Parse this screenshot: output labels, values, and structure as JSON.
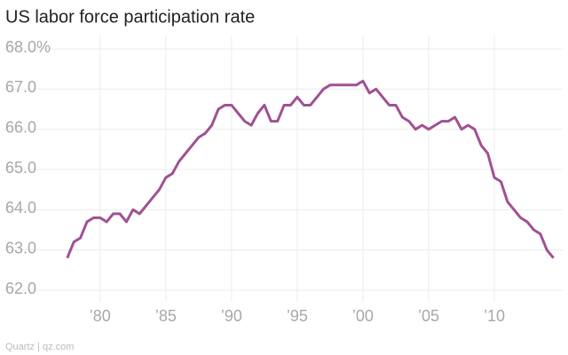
{
  "chart_data": {
    "type": "line",
    "title": "US labor force participation rate",
    "source": "Quartz | qz.com",
    "x": [
      1977.5,
      1978,
      1978.5,
      1979,
      1979.5,
      1980,
      1980.5,
      1981,
      1981.5,
      1982,
      1982.5,
      1983,
      1983.5,
      1984,
      1984.5,
      1985,
      1985.5,
      1986,
      1986.5,
      1987,
      1987.5,
      1988,
      1988.5,
      1989,
      1989.5,
      1990,
      1990.5,
      1991,
      1991.5,
      1992,
      1992.5,
      1993,
      1993.5,
      1994,
      1994.5,
      1995,
      1995.5,
      1996,
      1996.5,
      1997,
      1997.5,
      1998,
      1998.5,
      1999,
      1999.5,
      2000,
      2000.5,
      2001,
      2001.5,
      2002,
      2002.5,
      2003,
      2003.5,
      2004,
      2004.5,
      2005,
      2005.5,
      2006,
      2006.5,
      2007,
      2007.5,
      2008,
      2008.5,
      2009,
      2009.5,
      2010,
      2010.5,
      2011,
      2011.5,
      2012,
      2012.5,
      2013,
      2013.5,
      2014,
      2014.5
    ],
    "series": [
      {
        "name": "Participation rate",
        "color": "#a05192",
        "values": [
          62.8,
          63.2,
          63.3,
          63.7,
          63.8,
          63.8,
          63.7,
          63.9,
          63.9,
          63.7,
          64.0,
          63.9,
          64.1,
          64.3,
          64.5,
          64.8,
          64.9,
          65.2,
          65.4,
          65.6,
          65.8,
          65.9,
          66.1,
          66.5,
          66.6,
          66.6,
          66.4,
          66.2,
          66.1,
          66.4,
          66.6,
          66.2,
          66.2,
          66.6,
          66.6,
          66.8,
          66.6,
          66.6,
          66.8,
          67.0,
          67.1,
          67.1,
          67.1,
          67.1,
          67.1,
          67.2,
          66.9,
          67.0,
          66.8,
          66.6,
          66.6,
          66.3,
          66.2,
          66.0,
          66.1,
          66.0,
          66.1,
          66.2,
          66.2,
          66.3,
          66.0,
          66.1,
          66.0,
          65.6,
          65.4,
          64.8,
          64.7,
          64.2,
          64.0,
          63.8,
          63.7,
          63.5,
          63.4,
          63.0,
          62.8
        ]
      }
    ],
    "xlim": [
      1976.5,
      2015.2
    ],
    "xticks": [
      {
        "value": 1980,
        "label": "’80"
      },
      {
        "value": 1985,
        "label": "’85"
      },
      {
        "value": 1990,
        "label": "’90"
      },
      {
        "value": 1995,
        "label": "’95"
      },
      {
        "value": 2000,
        "label": "’00"
      },
      {
        "value": 2005,
        "label": "’05"
      },
      {
        "value": 2010,
        "label": "’10"
      }
    ],
    "ylim": [
      62,
      68
    ],
    "yticks": [
      {
        "value": 62,
        "label": "62.0"
      },
      {
        "value": 63,
        "label": "63.0"
      },
      {
        "value": 64,
        "label": "64.0"
      },
      {
        "value": 65,
        "label": "65.0"
      },
      {
        "value": 66,
        "label": "66.0"
      },
      {
        "value": 67,
        "label": "67.0"
      },
      {
        "value": 68,
        "label": "68.0%"
      }
    ],
    "grid": true
  }
}
